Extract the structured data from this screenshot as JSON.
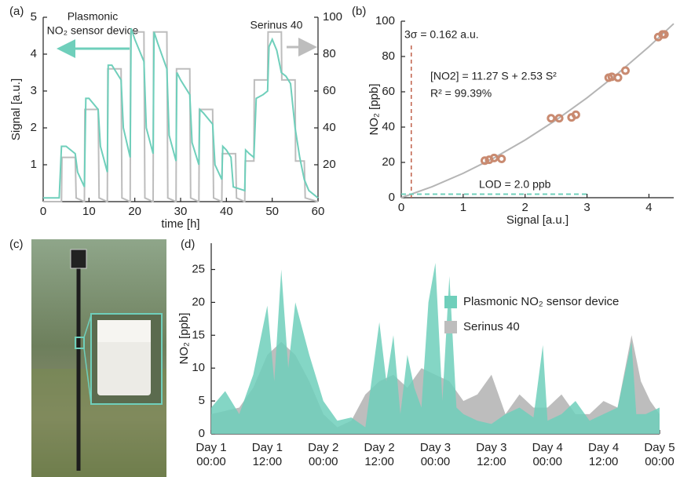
{
  "chart_data": [
    {
      "type": "line",
      "panel": "(a)",
      "xlabel": "time [h]",
      "ylabel": "Signal [a.u.]",
      "annotations": [
        "Plasmonic",
        "NO₂ sensor device",
        "Serinus 40"
      ],
      "xlim": [
        0,
        60
      ],
      "xticks": [
        0,
        10,
        20,
        30,
        40,
        50,
        60
      ],
      "ylim": [
        0,
        5
      ],
      "yticks": [
        1,
        2,
        3,
        4,
        5
      ],
      "y2lim": [
        0,
        100
      ],
      "y2ticks": [
        20,
        40,
        60,
        80,
        100
      ],
      "series": [
        {
          "color": "#bdbdbd",
          "axis": "y2",
          "x": [
            0,
            4,
            4.1,
            7,
            7.2,
            9,
            9.1,
            12,
            12.2,
            14,
            14.1,
            17,
            17.2,
            19,
            19.1,
            22,
            22.2,
            24,
            24.1,
            27,
            27.2,
            29,
            29.1,
            32,
            32.2,
            34,
            34.1,
            37,
            37.2,
            39,
            39.1,
            42,
            42.2,
            44,
            44.1,
            46,
            46.1,
            49,
            49.1,
            52,
            52.1,
            55,
            55.1,
            57,
            57.2,
            60
          ],
          "values": [
            0,
            0,
            24,
            24,
            2,
            0,
            50,
            50,
            2,
            0,
            72,
            72,
            2,
            0,
            92,
            92,
            2,
            0,
            92,
            92,
            2,
            0,
            72,
            72,
            2,
            0,
            50,
            50,
            2,
            0,
            26,
            26,
            2,
            0,
            22,
            22,
            66,
            66,
            92,
            92,
            66,
            66,
            22,
            22,
            2,
            0
          ]
        },
        {
          "color": "#6fcfbb",
          "x": [
            0,
            3.5,
            4,
            5,
            7,
            7.5,
            9,
            9.3,
            10,
            12,
            12.5,
            14,
            14.2,
            15,
            17,
            17.5,
            19,
            19.2,
            20,
            22,
            22.5,
            24,
            24.2,
            25,
            27,
            27.5,
            29,
            29.2,
            30,
            32,
            32.5,
            34,
            34.2,
            35,
            37,
            37.5,
            39,
            39.2,
            40,
            41,
            41.5,
            44,
            44.2,
            45,
            46,
            46.5,
            48,
            49,
            49.3,
            50,
            51,
            52,
            53,
            54,
            55,
            56,
            57,
            58,
            60
          ],
          "values": [
            0.1,
            0.1,
            1.5,
            1.5,
            1.3,
            0.8,
            0.4,
            2.8,
            2.8,
            2.5,
            1.5,
            0.8,
            3.7,
            3.7,
            3.3,
            2.0,
            1.2,
            4.7,
            4.4,
            3.8,
            2.0,
            1.3,
            4.6,
            4.3,
            3.6,
            1.8,
            1.1,
            3.5,
            3.3,
            2.9,
            1.6,
            1.0,
            2.5,
            2.4,
            2.1,
            1.0,
            0.6,
            1.5,
            1.4,
            1.2,
            0.4,
            0.3,
            1.4,
            1.3,
            1.2,
            2.8,
            2.9,
            3.0,
            4.2,
            4.4,
            4.1,
            3.5,
            3.4,
            3.2,
            2.0,
            1.2,
            0.6,
            0.3,
            0.1
          ]
        }
      ]
    },
    {
      "type": "scatter",
      "panel": "(b)",
      "xlabel": "Signal [a.u.]",
      "ylabel": "NO₂ [ppb]",
      "annotations": [
        "3σ = 0.162 a.u.",
        "[NO2] = 11.27 S + 2.53 S²",
        "R² = 99.39%",
        "LOD = 2.0 ppb"
      ],
      "xlim": [
        0,
        4.4
      ],
      "xticks": [
        0,
        1,
        2,
        3,
        4
      ],
      "ylim": [
        0,
        100
      ],
      "yticks": [
        0,
        20,
        40,
        60,
        80,
        100
      ],
      "color": "#c98a70",
      "x": [
        1.35,
        1.42,
        1.5,
        1.62,
        2.42,
        2.55,
        2.75,
        2.82,
        3.35,
        3.4,
        3.5,
        3.62,
        4.15,
        4.22,
        4.25
      ],
      "values": [
        21,
        21.5,
        22.5,
        22,
        45,
        45,
        45.5,
        47,
        68,
        68.5,
        68,
        72,
        91,
        92.5,
        92.5
      ],
      "fit": {
        "color": "#b5b5b5",
        "x": [
          0,
          0.5,
          1,
          1.5,
          2,
          2.5,
          3,
          3.5,
          4,
          4.4
        ],
        "values": [
          0,
          6.27,
          13.8,
          22.6,
          32.66,
          43.99,
          56.58,
          70.44,
          85.56,
          98.57
        ]
      },
      "threshold_x": 0.162,
      "threshold_y": 2.0
    },
    {
      "type": "area",
      "panel": "(d)",
      "ylabel": "NO₂ [ppb]",
      "xlim": [
        0,
        96
      ],
      "xticks": [
        {
          "value": 0,
          "label": [
            "Day 1",
            "00:00"
          ]
        },
        {
          "value": 12,
          "label": [
            "Day 1",
            "12:00"
          ]
        },
        {
          "value": 24,
          "label": [
            "Day 2",
            "00:00"
          ]
        },
        {
          "value": 36,
          "label": [
            "Day 2",
            "12:00"
          ]
        },
        {
          "value": 48,
          "label": [
            "Day 3",
            "00:00"
          ]
        },
        {
          "value": 60,
          "label": [
            "Day 3",
            "12:00"
          ]
        },
        {
          "value": 72,
          "label": [
            "Day 4",
            "00:00"
          ]
        },
        {
          "value": 84,
          "label": [
            "Day 4",
            "12:00"
          ]
        },
        {
          "value": 96,
          "label": [
            "Day 5",
            "00:00"
          ]
        }
      ],
      "ylim": [
        0,
        29
      ],
      "yticks": [
        0,
        5,
        10,
        15,
        20,
        25
      ],
      "series": [
        {
          "name": "Plasmonic NO₂ sensor device",
          "color": "#6fcfbb",
          "x": [
            0,
            3,
            6,
            9,
            12,
            13.5,
            15,
            16.5,
            18,
            21,
            24,
            27,
            30,
            33,
            36,
            37.5,
            39,
            40.5,
            42,
            43.5,
            45,
            46.5,
            48,
            49.5,
            51,
            52.5,
            54,
            57,
            60,
            63,
            66,
            69,
            71,
            72,
            75,
            78,
            81,
            84,
            87,
            90,
            91,
            93,
            96
          ],
          "values": [
            4,
            6.5,
            3,
            9,
            19.5,
            8,
            25,
            10,
            20,
            12,
            5,
            2,
            2.5,
            1,
            17,
            8,
            15,
            3,
            12,
            7,
            4,
            20,
            26,
            5,
            24,
            4,
            3,
            2,
            1.5,
            3,
            4,
            2.5,
            13.5,
            2,
            3,
            5,
            2,
            3,
            4,
            14,
            3,
            3,
            4
          ]
        },
        {
          "name": "Serinus 40",
          "color": "#bdbdbd",
          "x": [
            0,
            6,
            9,
            12,
            15,
            18,
            21,
            24,
            27,
            30,
            33,
            36,
            39,
            42,
            45,
            48,
            51,
            54,
            57,
            60,
            63,
            66,
            69,
            72,
            75,
            78,
            81,
            84,
            87,
            90,
            92,
            94,
            96
          ],
          "values": [
            3,
            4,
            7,
            12,
            14,
            12,
            8,
            3,
            1,
            2,
            6,
            8,
            9,
            7,
            10,
            9,
            8,
            5,
            6,
            9,
            3,
            6,
            4,
            4,
            6,
            3,
            3,
            5,
            4,
            15,
            8,
            5,
            3
          ]
        }
      ]
    }
  ],
  "photo": {
    "panel": "(c)"
  }
}
